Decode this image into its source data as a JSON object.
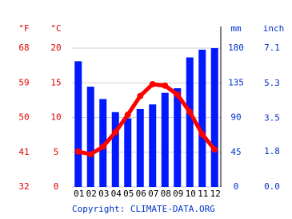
{
  "chart_data": {
    "type": "climate",
    "categories": [
      "01",
      "02",
      "03",
      "04",
      "05",
      "06",
      "07",
      "08",
      "09",
      "10",
      "11",
      "12"
    ],
    "series": [
      {
        "type": "bar",
        "axis": "y2",
        "color": "#0019ff",
        "values": [
          163,
          130,
          114,
          97,
          89,
          101,
          107,
          122,
          128,
          168,
          178,
          180
        ]
      },
      {
        "type": "line",
        "color": "#ff0000",
        "values": [
          5.1,
          4.7,
          5.8,
          7.9,
          10.4,
          13.1,
          14.8,
          14.6,
          13.3,
          10.8,
          7.6,
          5.4
        ]
      }
    ],
    "y_label": "°C",
    "ylim": [
      0,
      20
    ],
    "yticks": [
      0,
      5,
      10,
      15,
      20
    ],
    "y3_label": "°F",
    "y3lim": [
      32,
      68
    ],
    "y3ticks": [
      32,
      41,
      50,
      59,
      68
    ],
    "y2_label": "mm",
    "y2lim": [
      0,
      180
    ],
    "y2ticks": [
      0,
      45,
      90,
      135,
      180
    ],
    "y4_label": "inch",
    "y4lim": [
      0,
      7.1
    ],
    "y4ticks": [
      {
        "value": 0,
        "label": "0.0"
      },
      1.8,
      3.5,
      5.3,
      7.1
    ],
    "grid": true,
    "source": "Copyright: CLIMATE-DATA.ORG"
  }
}
